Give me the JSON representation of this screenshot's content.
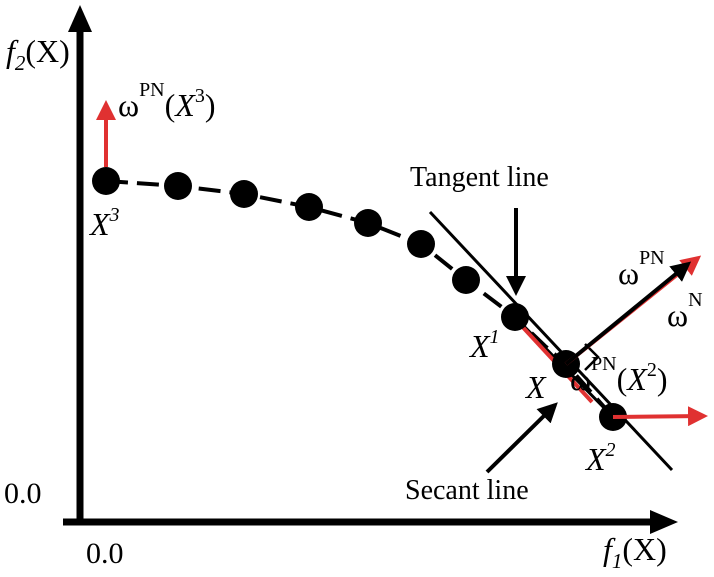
{
  "axes": {
    "y_label": {
      "f": "f",
      "sub": "2",
      "arg": "(X)"
    },
    "x_label": {
      "f": "f",
      "sub": "1",
      "arg": "(X)"
    },
    "origin_x": "0.0",
    "origin_y": "0.0"
  },
  "labels": {
    "tangent": "Tangent line",
    "secant": "Secant line",
    "x3": {
      "base": "X",
      "sup": "3"
    },
    "x1": {
      "base": "X",
      "sup": "1"
    },
    "x2": {
      "base": "X",
      "sup": "2"
    },
    "x": "X",
    "omega": "ω",
    "pn": "PN",
    "n": "N",
    "arg_x3": {
      "open": "(",
      "base": "X",
      "sup": "3",
      "close": ")"
    },
    "arg_x2": {
      "open": "(",
      "base": "X",
      "sup": "2",
      "close": ")"
    }
  },
  "colors": {
    "red": "#e03131",
    "black": "#000000"
  }
}
